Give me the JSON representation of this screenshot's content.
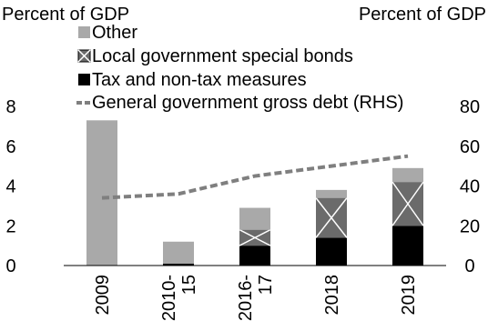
{
  "chart_data": {
    "type": "bar",
    "stacked": true,
    "left_axis_title": "Percent of GDP",
    "right_axis_title": "Percent of GDP",
    "categories": [
      "2009",
      "2010-\n15",
      "2016-\n17",
      "2018",
      "2019"
    ],
    "y_left": {
      "min": 0,
      "max": 8,
      "ticks": [
        0,
        2,
        4,
        6,
        8
      ]
    },
    "y_right": {
      "min": 0,
      "max": 80,
      "ticks": [
        0,
        20,
        40,
        60,
        80
      ]
    },
    "series": [
      {
        "name": "Tax and non-tax measures",
        "values": [
          0,
          0.1,
          1.0,
          1.4,
          2.0
        ],
        "color": "#000000",
        "pattern": "solid"
      },
      {
        "name": "Local government special bonds",
        "values": [
          0,
          0,
          0.8,
          2.0,
          2.2
        ],
        "color": "#6b6b6b",
        "pattern": "x-box"
      },
      {
        "name": "Other",
        "values": [
          7.3,
          1.1,
          1.1,
          0.4,
          0.7
        ],
        "color": "#a9a9a9",
        "pattern": "solid"
      }
    ],
    "line": {
      "name": "General government gross debt (RHS)",
      "axis": "right",
      "values": [
        34,
        36,
        45,
        50,
        55
      ],
      "color": "#7f7f7f",
      "style": "dashed"
    },
    "legend_order": [
      "Other",
      "Local government special bonds",
      "Tax and non-tax measures",
      "General government gross debt (RHS)"
    ]
  }
}
